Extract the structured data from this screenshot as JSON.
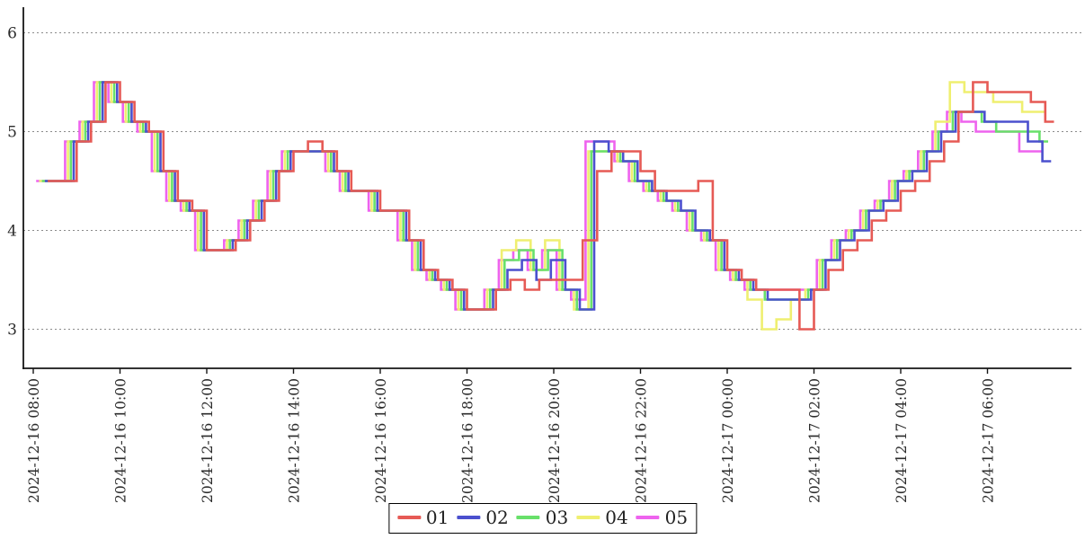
{
  "chart_data": {
    "type": "line",
    "step_mode": "post",
    "title": "",
    "xlabel": "",
    "ylabel": "",
    "grid": "horizontal-dotted",
    "legend_position": "bottom-center",
    "x_axis": {
      "base_time": "2024-12-16 08:00",
      "ticks": [
        {
          "label": "2024-12-16 08:00",
          "minutes": 0
        },
        {
          "label": "2024-12-16 10:00",
          "minutes": 120
        },
        {
          "label": "2024-12-16 12:00",
          "minutes": 240
        },
        {
          "label": "2024-12-16 14:00",
          "minutes": 360
        },
        {
          "label": "2024-12-16 16:00",
          "minutes": 480
        },
        {
          "label": "2024-12-16 18:00",
          "minutes": 600
        },
        {
          "label": "2024-12-16 20:00",
          "minutes": 720
        },
        {
          "label": "2024-12-16 22:00",
          "minutes": 840
        },
        {
          "label": "2024-12-17 00:00",
          "minutes": 960
        },
        {
          "label": "2024-12-17 02:00",
          "minutes": 1080
        },
        {
          "label": "2024-12-17 04:00",
          "minutes": 1200
        },
        {
          "label": "2024-12-17 06:00",
          "minutes": 1320
        }
      ]
    },
    "y_axis": {
      "ticks": [
        3,
        4,
        5,
        6
      ],
      "range": [
        2.6,
        6.25
      ]
    },
    "start_minutes": 20,
    "step_minutes": 20,
    "end_minutes": 1412,
    "series": [
      {
        "name": "01",
        "color": "#e65a55",
        "offset_minutes": 0,
        "values": [
          4.5,
          4.5,
          4.9,
          5.1,
          5.5,
          5.3,
          5.1,
          5.0,
          4.6,
          4.3,
          4.2,
          3.8,
          3.8,
          3.9,
          4.1,
          4.3,
          4.6,
          4.8,
          4.9,
          4.8,
          4.6,
          4.4,
          4.4,
          4.2,
          4.2,
          3.9,
          3.6,
          3.5,
          3.4,
          3.2,
          3.2,
          3.4,
          3.5,
          3.4,
          3.5,
          3.5,
          3.5,
          3.9,
          4.6,
          4.8,
          4.8,
          4.6,
          4.4,
          4.4,
          4.4,
          4.5,
          3.9,
          3.6,
          3.5,
          3.4,
          3.4,
          3.4,
          3.0,
          3.4,
          3.6,
          3.8,
          3.9,
          4.1,
          4.2,
          4.4,
          4.5,
          4.7,
          4.9,
          5.2,
          5.5,
          5.4,
          5.4,
          5.4,
          5.3,
          5.1
        ]
      },
      {
        "name": "02",
        "color": "#4b50ce",
        "offset_minutes": -4,
        "values": [
          4.5,
          4.5,
          4.9,
          5.1,
          5.5,
          5.3,
          5.1,
          5.0,
          4.6,
          4.3,
          4.2,
          3.8,
          3.8,
          3.9,
          4.1,
          4.3,
          4.6,
          4.8,
          4.8,
          4.8,
          4.6,
          4.4,
          4.4,
          4.2,
          4.2,
          3.9,
          3.6,
          3.5,
          3.4,
          3.2,
          3.2,
          3.4,
          3.6,
          3.7,
          3.5,
          3.7,
          3.4,
          3.2,
          4.9,
          4.8,
          4.7,
          4.5,
          4.4,
          4.3,
          4.2,
          4.0,
          3.9,
          3.6,
          3.5,
          3.4,
          3.3,
          3.3,
          3.3,
          3.4,
          3.7,
          3.9,
          4.0,
          4.2,
          4.3,
          4.5,
          4.6,
          4.8,
          5.0,
          5.2,
          5.2,
          5.1,
          5.1,
          5.1,
          4.9,
          4.7
        ]
      },
      {
        "name": "03",
        "color": "#68e06a",
        "offset_minutes": -8,
        "values": [
          4.5,
          4.5,
          4.9,
          5.1,
          5.5,
          5.3,
          5.1,
          5.0,
          4.6,
          4.3,
          4.2,
          3.8,
          3.8,
          3.9,
          4.1,
          4.3,
          4.6,
          4.8,
          4.8,
          4.8,
          4.6,
          4.4,
          4.4,
          4.2,
          4.2,
          3.9,
          3.6,
          3.5,
          3.4,
          3.2,
          3.2,
          3.4,
          3.7,
          3.8,
          3.6,
          3.8,
          3.4,
          3.2,
          4.8,
          4.8,
          4.7,
          4.5,
          4.4,
          4.3,
          4.2,
          4.0,
          3.9,
          3.6,
          3.5,
          3.4,
          3.3,
          3.3,
          3.3,
          3.4,
          3.7,
          3.9,
          4.0,
          4.2,
          4.3,
          4.5,
          4.6,
          4.8,
          5.0,
          5.2,
          5.2,
          5.1,
          5.0,
          5.0,
          5.0,
          4.9
        ]
      },
      {
        "name": "04",
        "color": "#efef70",
        "offset_minutes": -12,
        "values": [
          4.5,
          4.5,
          4.9,
          5.1,
          5.5,
          5.3,
          5.1,
          5.0,
          4.6,
          4.3,
          4.2,
          3.8,
          3.8,
          3.9,
          4.1,
          4.3,
          4.6,
          4.8,
          4.8,
          4.8,
          4.6,
          4.4,
          4.4,
          4.2,
          4.2,
          3.9,
          3.6,
          3.5,
          3.4,
          3.2,
          3.2,
          3.4,
          3.8,
          3.9,
          3.6,
          3.9,
          3.4,
          3.2,
          4.8,
          4.8,
          4.7,
          4.5,
          4.4,
          4.3,
          4.2,
          4.0,
          3.9,
          3.6,
          3.5,
          3.3,
          3.0,
          3.1,
          3.3,
          3.4,
          3.7,
          3.9,
          4.0,
          4.2,
          4.3,
          4.5,
          4.6,
          4.8,
          5.1,
          5.5,
          5.4,
          5.4,
          5.3,
          5.3,
          5.2,
          5.2
        ]
      },
      {
        "name": "05",
        "color": "#ee63ee",
        "offset_minutes": -16,
        "values": [
          4.5,
          4.5,
          4.9,
          5.1,
          5.5,
          5.3,
          5.1,
          5.0,
          4.6,
          4.3,
          4.2,
          3.8,
          3.8,
          3.9,
          4.1,
          4.3,
          4.6,
          4.8,
          4.8,
          4.8,
          4.6,
          4.4,
          4.4,
          4.2,
          4.2,
          3.9,
          3.6,
          3.5,
          3.4,
          3.2,
          3.2,
          3.4,
          3.7,
          3.8,
          3.6,
          3.8,
          3.4,
          3.3,
          4.9,
          4.9,
          4.7,
          4.5,
          4.4,
          4.3,
          4.2,
          4.0,
          3.9,
          3.6,
          3.5,
          3.4,
          3.4,
          3.4,
          3.4,
          3.4,
          3.7,
          3.9,
          4.0,
          4.2,
          4.3,
          4.5,
          4.6,
          4.8,
          5.0,
          5.2,
          5.1,
          5.0,
          5.0,
          5.0,
          4.8,
          4.8
        ]
      }
    ]
  }
}
